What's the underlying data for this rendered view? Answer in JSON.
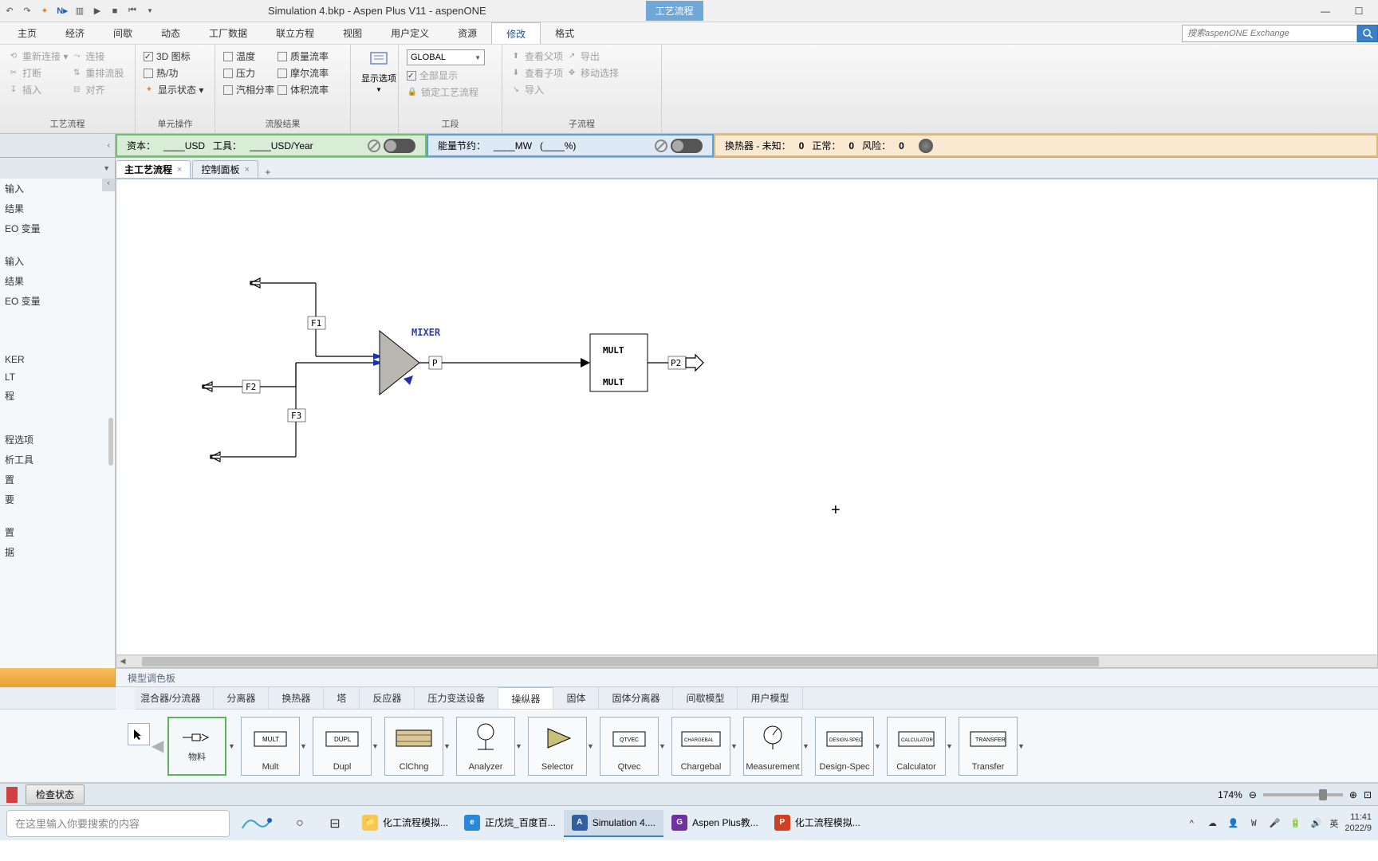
{
  "title": "Simulation 4.bkp - Aspen Plus V11 - aspenONE",
  "title_tab": "工艺流程",
  "menu": [
    "主页",
    "经济",
    "间歇",
    "动态",
    "工厂数据",
    "联立方程",
    "视图",
    "用户定义",
    "资源",
    "修改",
    "格式"
  ],
  "menu_active": 9,
  "search_placeholder": "搜索aspenONE Exchange",
  "ribbon": {
    "g1": {
      "items": [
        "重新连接 ▾",
        "连接",
        "打断",
        "重排流股",
        "插入",
        "对齐"
      ],
      "label": "工艺流程"
    },
    "g2": {
      "items": [
        "3D 图标",
        "热/功",
        "显示状态 ▾"
      ],
      "label": "单元操作",
      "checked": [
        0
      ]
    },
    "g3": {
      "items": [
        "温度",
        "压力",
        "汽相分率",
        "质量流率",
        "摩尔流率",
        "体积流率"
      ],
      "label": "流股结果"
    },
    "g4": {
      "label": "显示选项"
    },
    "g5": {
      "combo": "GLOBAL",
      "items": [
        "全部显示",
        "锁定工艺流程"
      ],
      "checked": [
        0
      ],
      "label": "工段"
    },
    "g6": {
      "items": [
        "查看父项",
        "查看子项",
        "导入",
        "导出",
        "移动选择"
      ],
      "label": "子流程"
    }
  },
  "status_green": {
    "label1": "资本：",
    "val1": "____USD",
    "label2": "工具：",
    "val2": "____USD/Year"
  },
  "status_blue": {
    "label": "能量节约：",
    "val1": "____MW",
    "val2": "(____%)"
  },
  "status_orange": {
    "label1": "换热器 - 未知：",
    "v1": "0",
    "label2": "正常：",
    "v2": "0",
    "label3": "风险：",
    "v3": "0"
  },
  "doctabs": [
    {
      "label": "主工艺流程",
      "active": true
    },
    {
      "label": "控制面板",
      "active": false
    }
  ],
  "nav": [
    "输入",
    "结果",
    "EO 变量",
    "",
    "输入",
    "结果",
    "EO 变量",
    "",
    "",
    "KER",
    "LT",
    "程",
    "",
    "",
    "程选项",
    "析工具",
    "置",
    "要",
    "",
    "置",
    "据"
  ],
  "flowsheet": {
    "mixer_label": "MIXER",
    "mult_line1": "MULT",
    "mult_line2": "MULT",
    "streams": {
      "f1": "F1",
      "f2": "F2",
      "f3": "F3",
      "p": "P",
      "p2": "P2"
    },
    "colors": {
      "stream": "#000000",
      "mixer_fill": "#babab0",
      "block_text": "#3040a0"
    }
  },
  "palette_title": "模型调色板",
  "palette_tabs": [
    "混合器/分流器",
    "分离器",
    "换热器",
    "塔",
    "反应器",
    "压力变送设备",
    "操纵器",
    "固体",
    "固体分离器",
    "间歇模型",
    "用户模型"
  ],
  "palette_active": 6,
  "palette_first": "物料",
  "palette_items": [
    {
      "label": "Mult",
      "icon": "mult"
    },
    {
      "label": "Dupl",
      "icon": "dupl"
    },
    {
      "label": "ClChng",
      "icon": "clchng"
    },
    {
      "label": "Analyzer",
      "icon": "analyzer"
    },
    {
      "label": "Selector",
      "icon": "selector"
    },
    {
      "label": "Qtvec",
      "icon": "qtvec"
    },
    {
      "label": "Chargebal",
      "icon": "chargebal"
    },
    {
      "label": "Measurement",
      "icon": "measurement"
    },
    {
      "label": "Design-Spec",
      "icon": "designspec"
    },
    {
      "label": "Calculator",
      "icon": "calculator"
    },
    {
      "label": "Transfer",
      "icon": "transfer"
    }
  ],
  "statusbar_btn": "检查状态",
  "zoom": "174%",
  "taskbar": {
    "search": "在这里输入你要搜索的内容",
    "items": [
      {
        "label": "化工流程模拟...",
        "color": "#f8c850",
        "letter": "📁"
      },
      {
        "label": "正戊烷_百度百...",
        "color": "#2a88d8",
        "letter": "e",
        "active": false
      },
      {
        "label": "Simulation 4....",
        "color": "#3060a0",
        "letter": "A",
        "active": true
      },
      {
        "label": "Aspen Plus教...",
        "color": "#7030a0",
        "letter": "G"
      },
      {
        "label": "化工流程模拟...",
        "color": "#d04020",
        "letter": "P"
      }
    ],
    "time": "11:41",
    "date": "2022/9",
    "ime": "英"
  }
}
